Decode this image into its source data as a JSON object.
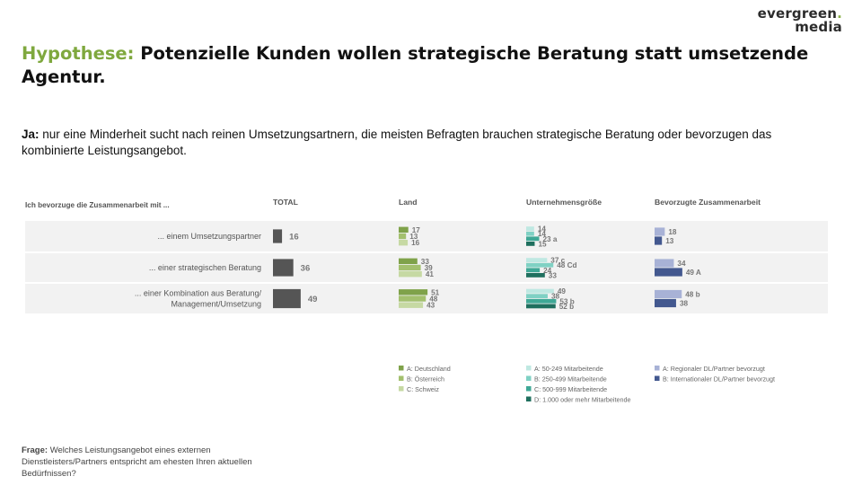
{
  "logo": {
    "line1": "evergreen",
    "line2": "media"
  },
  "title": {
    "highlight": "Hypothese:",
    "rest": "Potenzielle Kunden wollen strategische Beratung statt umsetzende Agentur."
  },
  "lead": {
    "bold": "Ja:",
    "text": "nur eine Minderheit sucht nach reinen Umsetzungsartnern, die meisten Befragten brauchen strategische Beratung oder bevorzugen das kombinierte Leistungsangebot."
  },
  "footnote": {
    "bold": "Frage:",
    "text": "Welches Leistungsangebot eines externen Dienstleisters/Partners entspricht am ehesten Ihren aktuellen Bedürfnissen?"
  },
  "chart_data": {
    "type": "bar",
    "question": "Ich bevorzuge die Zusammenarbeit mit ...",
    "categories": [
      [
        "... einem Umsetzungspartner"
      ],
      [
        "... einer strategischen Beratung"
      ],
      [
        "... einer Kombination aus Beratung/",
        "Management/Umsetzung"
      ]
    ],
    "groups": [
      {
        "header": "TOTAL",
        "color_hint": "dark",
        "series": [
          {
            "name": "",
            "color": "#555555",
            "values": [
              16,
              36,
              49
            ],
            "labels": [
              "16",
              "36",
              "49"
            ]
          }
        ]
      },
      {
        "header": "Land",
        "series": [
          {
            "name": "A: Deutschland",
            "color": "#7fa24a",
            "values": [
              17,
              33,
              51
            ],
            "labels": [
              "17",
              "33",
              "51"
            ]
          },
          {
            "name": "B: Österreich",
            "color": "#a3c06e",
            "values": [
              13,
              39,
              48
            ],
            "labels": [
              "13",
              "39",
              "48"
            ]
          },
          {
            "name": "C: Schweiz",
            "color": "#c6d9a3",
            "values": [
              16,
              41,
              43
            ],
            "labels": [
              "16",
              "41",
              "43"
            ]
          }
        ]
      },
      {
        "header": "Unternehmensgröße",
        "series": [
          {
            "name": "A: 50-249 Mitarbeitende",
            "color": "#bfe8e2",
            "values": [
              14,
              37,
              49
            ],
            "labels": [
              "14",
              "37 c",
              "49"
            ]
          },
          {
            "name": "B: 250-499 Mitarbeitende",
            "color": "#7fd1c4",
            "values": [
              14,
              48,
              38
            ],
            "labels": [
              "14",
              "48 Cd",
              "38"
            ]
          },
          {
            "name": "C: 500-999 Mitarbeitende",
            "color": "#3fa896",
            "values": [
              23,
              24,
              53
            ],
            "labels": [
              "23 a",
              "24",
              "53 b"
            ]
          },
          {
            "name": "D: 1.000 oder mehr Mitarbeitende",
            "color": "#1f6f5e",
            "values": [
              15,
              33,
              52
            ],
            "labels": [
              "15",
              "33",
              "52 b"
            ]
          }
        ]
      },
      {
        "header": "Bevorzugte Zusammenarbeit",
        "series": [
          {
            "name": "A: Regionaler DL/Partner bevorzugt",
            "color": "#a8b2d6",
            "values": [
              18,
              34,
              48
            ],
            "labels": [
              "18",
              "34",
              "48 b"
            ]
          },
          {
            "name": "B: Internationaler DL/Partner bevorzugt",
            "color": "#43588f",
            "values": [
              13,
              49,
              38
            ],
            "labels": [
              "13",
              "49 A",
              "38"
            ]
          }
        ]
      }
    ]
  }
}
